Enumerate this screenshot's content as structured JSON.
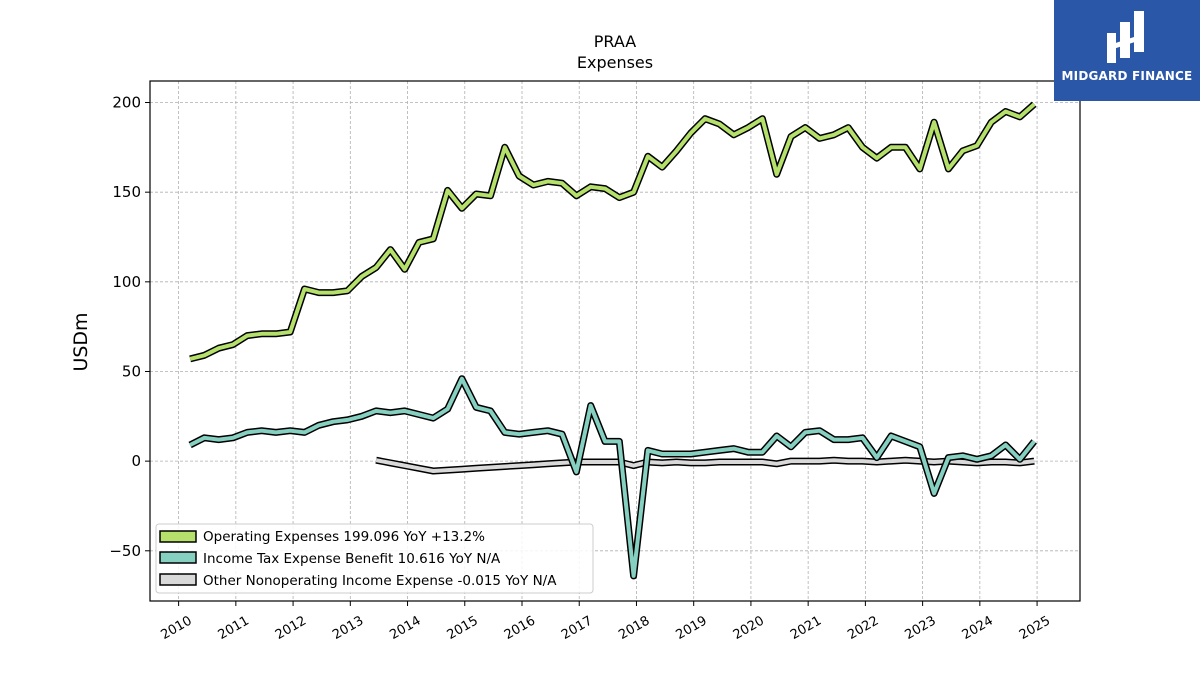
{
  "brand": {
    "name": "MIDGARD FINANCE",
    "bg_color": "#2b57a8"
  },
  "chart_data": {
    "type": "line",
    "title": "PRAA",
    "subtitle": "Expenses",
    "ylabel": "USDm",
    "xlabel": "",
    "ylim": [
      -78,
      212
    ],
    "xlim": [
      2009.5,
      2025.75
    ],
    "y_ticks": [
      -50,
      0,
      50,
      100,
      150,
      200
    ],
    "y_tick_labels": [
      "−50",
      "0",
      "50",
      "100",
      "150",
      "200"
    ],
    "x_ticks": [
      2010,
      2011,
      2012,
      2013,
      2014,
      2015,
      2016,
      2017,
      2018,
      2019,
      2020,
      2021,
      2022,
      2023,
      2024,
      2025
    ],
    "grid": true,
    "legend_position": "lower-left",
    "series": [
      {
        "name": "Operating Expenses",
        "legend_label": "Operating Expenses  199.096 YoY +13.2%",
        "color": "#b5e06b",
        "points": [
          [
            2010.2,
            57
          ],
          [
            2010.45,
            59
          ],
          [
            2010.7,
            63
          ],
          [
            2010.95,
            65
          ],
          [
            2011.2,
            70
          ],
          [
            2011.45,
            71
          ],
          [
            2011.7,
            71
          ],
          [
            2011.95,
            72
          ],
          [
            2012.2,
            96
          ],
          [
            2012.45,
            94
          ],
          [
            2012.7,
            94
          ],
          [
            2012.95,
            95
          ],
          [
            2013.2,
            103
          ],
          [
            2013.45,
            108
          ],
          [
            2013.7,
            118
          ],
          [
            2013.95,
            107
          ],
          [
            2014.2,
            122
          ],
          [
            2014.45,
            124
          ],
          [
            2014.7,
            151
          ],
          [
            2014.95,
            141
          ],
          [
            2015.2,
            149
          ],
          [
            2015.45,
            148
          ],
          [
            2015.7,
            175
          ],
          [
            2015.95,
            159
          ],
          [
            2016.2,
            154
          ],
          [
            2016.45,
            156
          ],
          [
            2016.7,
            155
          ],
          [
            2016.95,
            148
          ],
          [
            2017.2,
            153
          ],
          [
            2017.45,
            152
          ],
          [
            2017.7,
            147
          ],
          [
            2017.95,
            150
          ],
          [
            2018.2,
            170
          ],
          [
            2018.45,
            164
          ],
          [
            2018.7,
            173
          ],
          [
            2018.95,
            183
          ],
          [
            2019.2,
            191
          ],
          [
            2019.45,
            188
          ],
          [
            2019.7,
            182
          ],
          [
            2019.95,
            186
          ],
          [
            2020.2,
            191
          ],
          [
            2020.45,
            160
          ],
          [
            2020.7,
            181
          ],
          [
            2020.95,
            186
          ],
          [
            2021.2,
            180
          ],
          [
            2021.45,
            182
          ],
          [
            2021.7,
            186
          ],
          [
            2021.95,
            175
          ],
          [
            2022.2,
            169
          ],
          [
            2022.45,
            175
          ],
          [
            2022.7,
            175
          ],
          [
            2022.95,
            163
          ],
          [
            2023.2,
            189
          ],
          [
            2023.45,
            163
          ],
          [
            2023.7,
            173
          ],
          [
            2023.95,
            176
          ],
          [
            2024.2,
            189
          ],
          [
            2024.45,
            195
          ],
          [
            2024.7,
            192
          ],
          [
            2024.95,
            199
          ]
        ]
      },
      {
        "name": "Income Tax Expense Benefit",
        "legend_label": "Income Tax Expense Benefit  10.616 YoY N/A",
        "color": "#86d0c1",
        "points": [
          [
            2010.2,
            9
          ],
          [
            2010.45,
            13
          ],
          [
            2010.7,
            12
          ],
          [
            2010.95,
            13
          ],
          [
            2011.2,
            16
          ],
          [
            2011.45,
            17
          ],
          [
            2011.7,
            16
          ],
          [
            2011.95,
            17
          ],
          [
            2012.2,
            16
          ],
          [
            2012.45,
            20
          ],
          [
            2012.7,
            22
          ],
          [
            2012.95,
            23
          ],
          [
            2013.2,
            25
          ],
          [
            2013.45,
            28
          ],
          [
            2013.7,
            27
          ],
          [
            2013.95,
            28
          ],
          [
            2014.2,
            26
          ],
          [
            2014.45,
            24
          ],
          [
            2014.7,
            29
          ],
          [
            2014.95,
            46
          ],
          [
            2015.2,
            30
          ],
          [
            2015.45,
            28
          ],
          [
            2015.7,
            16
          ],
          [
            2015.95,
            15
          ],
          [
            2016.2,
            16
          ],
          [
            2016.45,
            17
          ],
          [
            2016.7,
            15
          ],
          [
            2016.95,
            -6
          ],
          [
            2017.2,
            31
          ],
          [
            2017.45,
            11
          ],
          [
            2017.7,
            11
          ],
          [
            2017.95,
            -64
          ],
          [
            2018.2,
            6
          ],
          [
            2018.45,
            4
          ],
          [
            2018.7,
            4
          ],
          [
            2018.95,
            4
          ],
          [
            2019.2,
            5
          ],
          [
            2019.45,
            6
          ],
          [
            2019.7,
            7
          ],
          [
            2019.95,
            5
          ],
          [
            2020.2,
            5
          ],
          [
            2020.45,
            14
          ],
          [
            2020.7,
            8
          ],
          [
            2020.95,
            16
          ],
          [
            2021.2,
            17
          ],
          [
            2021.45,
            12
          ],
          [
            2021.7,
            12
          ],
          [
            2021.95,
            13
          ],
          [
            2022.2,
            2
          ],
          [
            2022.45,
            14
          ],
          [
            2022.7,
            11
          ],
          [
            2022.95,
            8
          ],
          [
            2023.2,
            -18
          ],
          [
            2023.45,
            2
          ],
          [
            2023.7,
            3
          ],
          [
            2023.95,
            1
          ],
          [
            2024.2,
            3
          ],
          [
            2024.45,
            9
          ],
          [
            2024.7,
            1
          ],
          [
            2024.95,
            11
          ]
        ]
      },
      {
        "name": "Other Nonoperating Income Expense",
        "legend_label": "Other Nonoperating Income Expense  -0.015 YoY N/A",
        "color": "#d9d9d9",
        "points": [
          [
            2013.45,
            0.5
          ],
          [
            2013.7,
            -1
          ],
          [
            2013.95,
            -2.5
          ],
          [
            2014.2,
            -4
          ],
          [
            2014.45,
            -5.5
          ],
          [
            2014.7,
            -5
          ],
          [
            2014.95,
            -4.5
          ],
          [
            2015.2,
            -4
          ],
          [
            2015.45,
            -3.5
          ],
          [
            2015.7,
            -3
          ],
          [
            2015.95,
            -2.5
          ],
          [
            2016.2,
            -2
          ],
          [
            2016.45,
            -1.5
          ],
          [
            2016.7,
            -1
          ],
          [
            2016.95,
            -0.5
          ],
          [
            2017.2,
            -0.5
          ],
          [
            2017.45,
            -0.5
          ],
          [
            2017.7,
            -0.5
          ],
          [
            2017.95,
            -2.5
          ],
          [
            2018.2,
            -0.5
          ],
          [
            2018.45,
            -1
          ],
          [
            2018.7,
            -0.5
          ],
          [
            2018.95,
            -1
          ],
          [
            2019.2,
            -1
          ],
          [
            2019.45,
            -0.5
          ],
          [
            2019.7,
            -0.5
          ],
          [
            2019.95,
            -0.5
          ],
          [
            2020.2,
            -0.5
          ],
          [
            2020.45,
            -1.5
          ],
          [
            2020.7,
            0
          ],
          [
            2020.95,
            0
          ],
          [
            2021.2,
            0
          ],
          [
            2021.45,
            0.5
          ],
          [
            2021.7,
            0
          ],
          [
            2021.95,
            0
          ],
          [
            2022.2,
            -0.5
          ],
          [
            2022.45,
            0
          ],
          [
            2022.7,
            0.5
          ],
          [
            2022.95,
            0
          ],
          [
            2023.2,
            -0.5
          ],
          [
            2023.45,
            0
          ],
          [
            2023.7,
            -0.5
          ],
          [
            2023.95,
            -1
          ],
          [
            2024.2,
            -0.5
          ],
          [
            2024.45,
            -0.5
          ],
          [
            2024.7,
            -1
          ],
          [
            2024.95,
            0
          ]
        ]
      }
    ]
  }
}
